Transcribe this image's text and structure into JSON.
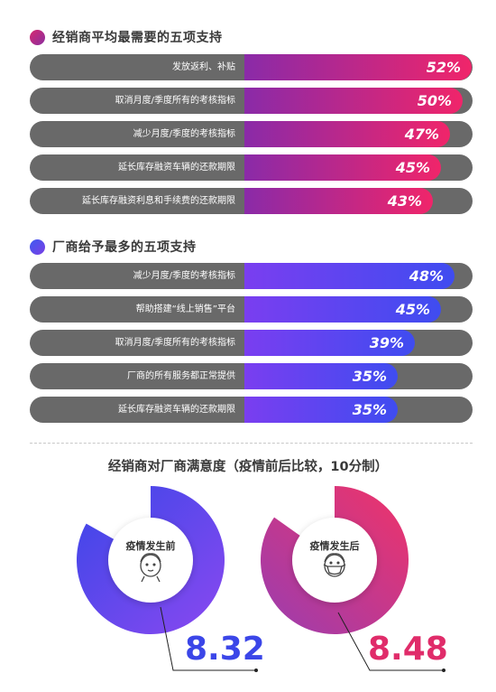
{
  "sections": [
    {
      "title": "经销商平均最需要的五项支持",
      "dot_gradient": [
        "#d6286f",
        "#8b2fa0"
      ],
      "bar_gradient": [
        "#8a2aa8",
        "#f0256a"
      ],
      "bars": [
        {
          "label": "发放返利、补贴",
          "value": 52,
          "display": "52%"
        },
        {
          "label": "取消月度/季度所有的考核指标",
          "value": 50,
          "display": "50%"
        },
        {
          "label": "减少月度/季度的考核指标",
          "value": 47,
          "display": "47%"
        },
        {
          "label": "延长库存融资车辆的还款期限",
          "value": 45,
          "display": "45%"
        },
        {
          "label": "延长库存融资利息和手续费的还款期限",
          "value": 43,
          "display": "43%"
        }
      ]
    },
    {
      "title": "厂商给予最多的五项支持",
      "dot_gradient": [
        "#3d5af1",
        "#7b3fe4"
      ],
      "bar_gradient": [
        "#7a3ef0",
        "#3f4cf0"
      ],
      "bars": [
        {
          "label": "减少月度/季度的考核指标",
          "value": 48,
          "display": "48%"
        },
        {
          "label": "帮助搭建“线上销售”平台",
          "value": 45,
          "display": "45%"
        },
        {
          "label": "取消月度/季度所有的考核指标",
          "value": 39,
          "display": "39%"
        },
        {
          "label": "厂商的所有服务都正常提供",
          "value": 35,
          "display": "35%"
        },
        {
          "label": "延长库存融资车辆的还款期限",
          "value": 35,
          "display": "35%"
        }
      ]
    }
  ],
  "satisfaction": {
    "title": "经销商对厂商满意度（疫情前后比较，10分制）",
    "before": {
      "label": "疫情发生前",
      "score": 8.32,
      "display": "8.32",
      "colors": [
        "#3b46e8",
        "#8a49f0"
      ],
      "text_color": "#3b46e8"
    },
    "after": {
      "label": "疫情发生后",
      "score": 8.48,
      "display": "8.48",
      "colors": [
        "#f03368",
        "#9a3db0"
      ],
      "text_color": "#e02c6a"
    },
    "max": 10
  },
  "chart_data": [
    {
      "type": "bar",
      "title": "经销商平均最需要的五项支持",
      "categories": [
        "发放返利、补贴",
        "取消月度/季度所有的考核指标",
        "减少月度/季度的考核指标",
        "延长库存融资车辆的还款期限",
        "延长库存融资利息和手续费的还款期限"
      ],
      "values": [
        52,
        50,
        47,
        45,
        43
      ]
    },
    {
      "type": "bar",
      "title": "厂商给予最多的五项支持",
      "categories": [
        "减少月度/季度的考核指标",
        "帮助搭建“线上销售”平台",
        "取消月度/季度所有的考核指标",
        "厂商的所有服务都正常提供",
        "延长库存融资车辆的还款期限"
      ],
      "values": [
        48,
        45,
        39,
        35,
        35
      ]
    },
    {
      "type": "pie",
      "title": "经销商对厂商满意度（疫情前后比较，10分制）",
      "categories": [
        "疫情发生前",
        "疫情发生后"
      ],
      "values": [
        8.32,
        8.48
      ]
    }
  ]
}
